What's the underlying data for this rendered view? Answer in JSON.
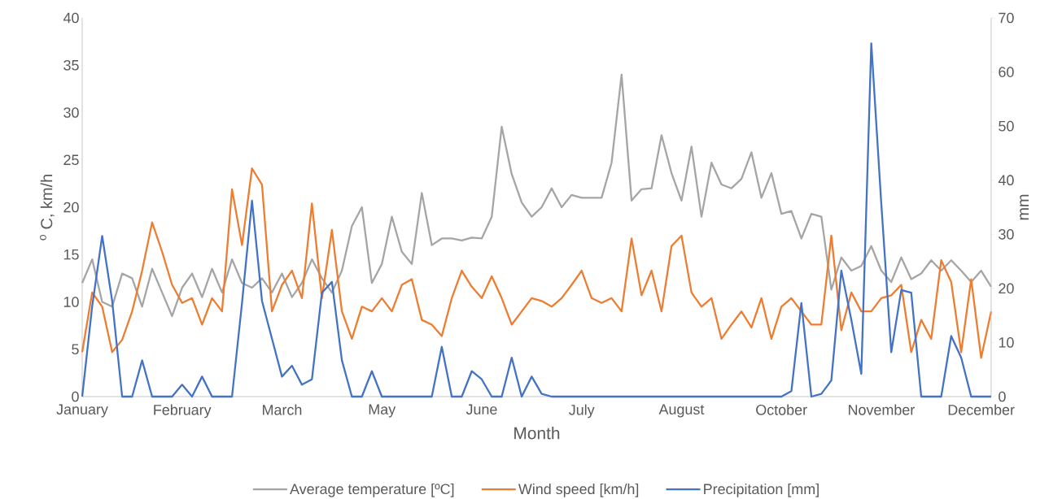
{
  "chart_data": {
    "type": "line",
    "xlabel": "Month",
    "ylabel": "$^{o}$ C, km/h",
    "y2label": "mm",
    "categories": [
      "January",
      null,
      null,
      null,
      null,
      null,
      null,
      null,
      null,
      null,
      "February",
      null,
      null,
      null,
      null,
      null,
      null,
      null,
      null,
      null,
      "March",
      null,
      null,
      null,
      null,
      null,
      null,
      null,
      null,
      null,
      "May",
      null,
      null,
      null,
      null,
      null,
      null,
      null,
      null,
      null,
      "June",
      null,
      null,
      null,
      null,
      null,
      null,
      null,
      null,
      null,
      "July",
      null,
      null,
      null,
      null,
      null,
      null,
      null,
      null,
      null,
      "August",
      null,
      null,
      null,
      null,
      null,
      null,
      null,
      null,
      null,
      "October",
      null,
      null,
      null,
      null,
      null,
      null,
      null,
      null,
      null,
      "November",
      null,
      null,
      null,
      null,
      null,
      null,
      null,
      null,
      null,
      "December",
      null
    ],
    "series": [
      {
        "name": "Average temperature [ºC]",
        "color": "#a5a5a5",
        "values": [
          12,
          14.5,
          10,
          9.5,
          13,
          12.5,
          9.5,
          13.5,
          11,
          8.5,
          11.5,
          13,
          10.5,
          13.5,
          11,
          14.5,
          12,
          11.5,
          12.5,
          11,
          13,
          10.5,
          12,
          14.5,
          12.5,
          11,
          13.3,
          18,
          20,
          12,
          14,
          19,
          15.3,
          14,
          21.5,
          16,
          16.7,
          16.7,
          16.5,
          16.8,
          16.7,
          19,
          28.5,
          23.5,
          20.5,
          19,
          20,
          22,
          20,
          21.3,
          21,
          21,
          21,
          24.7,
          34,
          20.7,
          21.9,
          22,
          27.6,
          23.6,
          20.7,
          26.4,
          19,
          24.7,
          22.4,
          22,
          23,
          25.8,
          21,
          23.6,
          19.3,
          19.6,
          16.7,
          19.3,
          19,
          11.3,
          14.7,
          13.3,
          13.8,
          15.9,
          13.3,
          12.1,
          14.7,
          12.4,
          13,
          14.4,
          13.3,
          14.4,
          13.3,
          12.1,
          13.3,
          11.6
        ]
      },
      {
        "name": "Wind speed [km/h]",
        "color": "#ed7d31",
        "values": [
          4.7,
          11,
          9.5,
          4.7,
          6,
          9,
          13.3,
          18.4,
          15.3,
          11.8,
          9.9,
          10.4,
          7.6,
          10.4,
          9,
          21.9,
          16,
          24.1,
          22.4,
          9,
          11.8,
          13.3,
          10.4,
          20.4,
          10.4,
          17.6,
          9,
          6.1,
          9.5,
          9,
          10.4,
          9,
          11.8,
          12.4,
          8.1,
          7.6,
          6.4,
          10.4,
          13.3,
          11.6,
          10.4,
          12.7,
          10.4,
          7.6,
          9,
          10.4,
          10.1,
          9.5,
          10.4,
          11.8,
          13.3,
          10.4,
          9.9,
          10.4,
          9,
          16.7,
          10.7,
          13.3,
          9,
          15.9,
          17,
          11,
          9.5,
          10.4,
          6.1,
          7.6,
          9,
          7.3,
          10.4,
          6.1,
          9.5,
          10.4,
          9,
          7.6,
          7.6,
          17,
          7,
          11,
          9,
          9,
          10.4,
          10.7,
          11.8,
          4.7,
          8.1,
          6.1,
          14.4,
          12.1,
          4.7,
          12.4,
          4.1,
          9
        ]
      },
      {
        "name": "Precipitation [mm]",
        "color": "#4472c4",
        "axis": "y2",
        "values": [
          0,
          16.7,
          29.7,
          17.7,
          0,
          0,
          6.7,
          0,
          0,
          0,
          2.2,
          0,
          3.7,
          0,
          0,
          0,
          17.3,
          36.2,
          17.7,
          10.7,
          3.7,
          5.7,
          2.2,
          3.2,
          19.2,
          21.2,
          6.7,
          0,
          0,
          4.7,
          0,
          0,
          0,
          0,
          0,
          0,
          9.2,
          0,
          0,
          4.7,
          3.2,
          0,
          0,
          7.2,
          0,
          3.7,
          0.5,
          0,
          0,
          0,
          0,
          0,
          0,
          0,
          0,
          0,
          0,
          0,
          0,
          0,
          0,
          0,
          0,
          0,
          0,
          0,
          0,
          0,
          0,
          0,
          0,
          1,
          17.3,
          0,
          0.5,
          3,
          23.3,
          14.2,
          4.2,
          65.3,
          35.7,
          8.2,
          19.7,
          19.2,
          0,
          0,
          0,
          11.2,
          7.2,
          0,
          0,
          0
        ]
      }
    ],
    "ylim": [
      0,
      40
    ],
    "yticks": [
      0,
      5,
      10,
      15,
      20,
      25,
      30,
      35,
      40
    ],
    "y2lim": [
      0,
      70
    ],
    "y2ticks": [
      0,
      10,
      20,
      30,
      40,
      50,
      60,
      70
    ],
    "legend": "bottom"
  }
}
